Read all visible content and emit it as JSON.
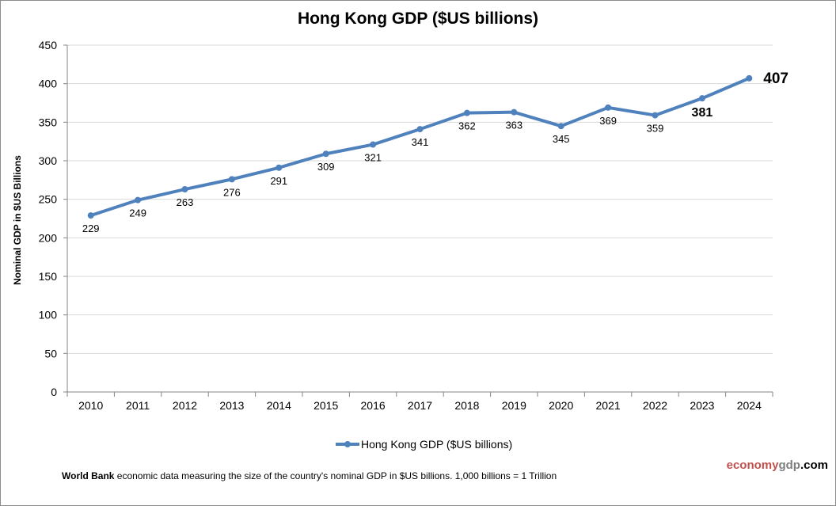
{
  "chart_data": {
    "type": "line",
    "title": "Hong Kong GDP ($US billions)",
    "xlabel": "",
    "ylabel": "Nominal GDP in $US Billions",
    "categories": [
      "2010",
      "2011",
      "2012",
      "2013",
      "2014",
      "2015",
      "2016",
      "2017",
      "2018",
      "2019",
      "2020",
      "2021",
      "2022",
      "2023",
      "2024"
    ],
    "series": [
      {
        "name": "Hong Kong GDP ($US billions)",
        "color": "#4f81bd",
        "values": [
          229,
          249,
          263,
          276,
          291,
          309,
          321,
          341,
          362,
          363,
          345,
          369,
          359,
          381,
          407
        ],
        "data_labels": [
          "229",
          "249",
          "263",
          "276",
          "291",
          "309",
          "321",
          "341",
          "362",
          "363",
          "345",
          "369",
          "359",
          "381",
          "407"
        ]
      }
    ],
    "ylim": [
      0,
      450
    ],
    "yticks": [
      0,
      50,
      100,
      150,
      200,
      250,
      300,
      350,
      400,
      450
    ],
    "ytick_labels": [
      "0",
      "50",
      "100",
      "150",
      "200",
      "250",
      "300",
      "350",
      "400",
      "450"
    ],
    "grid": true,
    "legend": "bottom-center"
  },
  "legend": {
    "label": "Hong Kong GDP ($US billions)"
  },
  "footnote": {
    "source_bold": "World Bank",
    "text": " economic data  measuring the size of the country's nominal  GDP in $US billions. 1,000 billions = 1 Trillion"
  },
  "brand": {
    "part1": "economy",
    "part2": "gdp",
    "part3": ".com"
  }
}
